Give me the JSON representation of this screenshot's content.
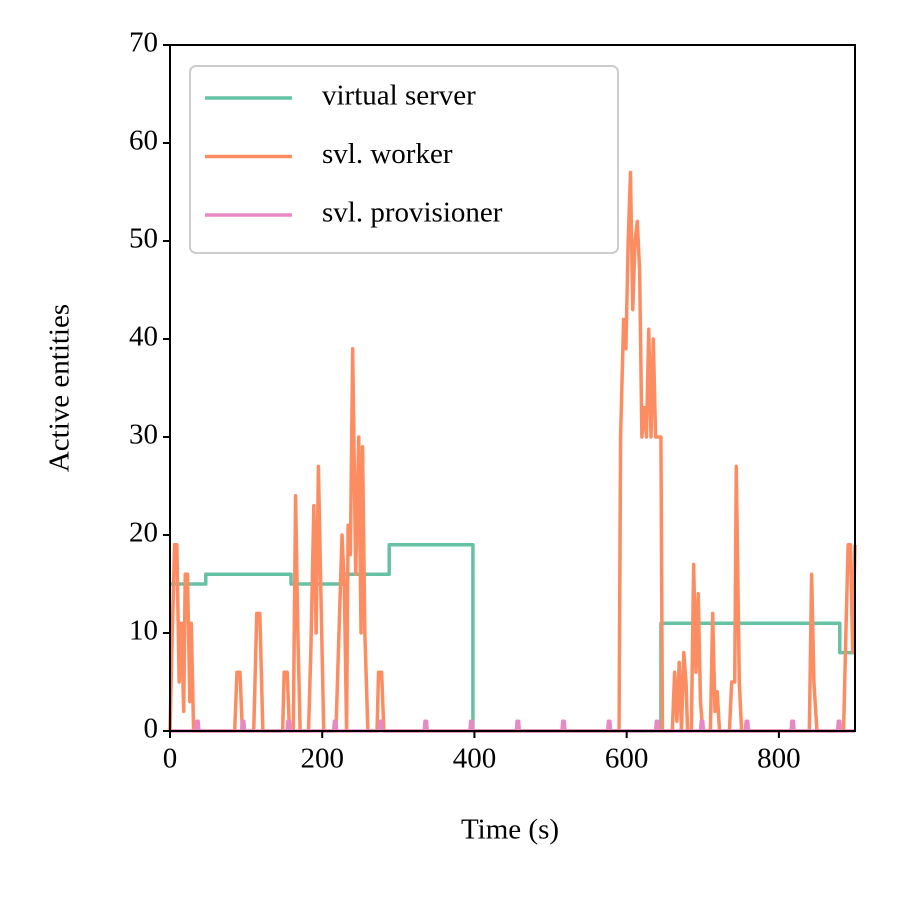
{
  "chart_data": {
    "type": "line",
    "xlabel": "Time (s)",
    "ylabel": "Active entities",
    "xlim": [
      0,
      900
    ],
    "xticks": [
      0,
      200,
      400,
      600,
      800
    ],
    "ylim": [
      0,
      70
    ],
    "yticks": [
      0,
      10,
      20,
      30,
      40,
      50,
      60,
      70
    ],
    "legend": "upper left",
    "series": [
      {
        "name": "virtual server",
        "color": "#66c2a5",
        "x": [
          0,
          47,
          47,
          159,
          159,
          227,
          227,
          288,
          288,
          398,
          398,
          645,
          645,
          880,
          880,
          900
        ],
        "values": [
          15,
          15,
          16,
          16,
          15,
          15,
          16,
          16,
          19,
          19,
          0,
          0,
          11,
          11,
          8,
          8
        ]
      },
      {
        "name": "svl. worker",
        "color": "#fc8d62",
        "x": [
          0,
          3,
          6,
          9,
          12,
          15,
          18,
          20,
          23,
          26,
          28,
          31,
          85,
          88,
          92,
          95,
          110,
          114,
          118,
          122,
          148,
          150,
          154,
          157,
          162,
          165,
          168,
          171,
          182,
          185,
          189,
          192,
          195,
          198,
          202,
          218,
          222,
          226,
          229,
          232,
          234,
          237,
          240,
          244,
          248,
          251,
          253,
          256,
          260,
          272,
          274,
          278,
          281,
          590,
          592,
          596,
          599,
          602,
          605,
          608,
          611,
          614,
          617,
          620,
          623,
          626,
          629,
          632,
          635,
          638,
          640,
          645,
          647,
          660,
          663,
          666,
          669,
          672,
          675,
          678,
          680,
          685,
          688,
          691,
          694,
          697,
          700,
          710,
          713,
          716,
          719,
          722,
          735,
          738,
          742,
          744,
          748,
          751,
          840,
          843,
          846,
          850,
          885,
          888,
          891,
          894,
          897,
          900
        ],
        "values": [
          0,
          10,
          19,
          19,
          5,
          11,
          2,
          16,
          16,
          3,
          11,
          0,
          0,
          6,
          6,
          0,
          0,
          12,
          12,
          0,
          0,
          6,
          6,
          0,
          0,
          24,
          10,
          0,
          0,
          8,
          23,
          10,
          27,
          15,
          0,
          0,
          10,
          20,
          15,
          0,
          21,
          18,
          39,
          16,
          30,
          10,
          29,
          10,
          0,
          0,
          6,
          6,
          0,
          0,
          30,
          42,
          39,
          50,
          57,
          43,
          50,
          52,
          47,
          30,
          33,
          30,
          41,
          30,
          40,
          30,
          30,
          30,
          0,
          0,
          6,
          1,
          7,
          0,
          8,
          5,
          0,
          0,
          17,
          6,
          14,
          3,
          0,
          0,
          12,
          2,
          4,
          0,
          0,
          5,
          5,
          27,
          5,
          0,
          0,
          16,
          5,
          0,
          0,
          10,
          19,
          19,
          8,
          19
        ]
      },
      {
        "name": "svl. provisioner",
        "color": "#e78ac3",
        "x": [
          0,
          34,
          35,
          37,
          38,
          94,
          95,
          97,
          98,
          154,
          155,
          157,
          158,
          215,
          216,
          218,
          219,
          275,
          276,
          278,
          279,
          334,
          335,
          337,
          338,
          394,
          395,
          397,
          398,
          455,
          456,
          458,
          459,
          515,
          516,
          518,
          519,
          575,
          576,
          578,
          579,
          638,
          639,
          641,
          642,
          697,
          698,
          700,
          701,
          756,
          757,
          759,
          760,
          816,
          817,
          819,
          820,
          877,
          878,
          880,
          881,
          900
        ],
        "values": [
          0,
          0,
          1,
          1,
          0,
          0,
          1,
          1,
          0,
          0,
          1,
          1,
          0,
          0,
          1,
          1,
          0,
          0,
          1,
          1,
          0,
          0,
          1,
          1,
          0,
          0,
          1,
          1,
          0,
          0,
          1,
          1,
          0,
          0,
          1,
          1,
          0,
          0,
          1,
          1,
          0,
          0,
          1,
          1,
          0,
          0,
          1,
          1,
          0,
          0,
          1,
          1,
          0,
          0,
          1,
          1,
          0,
          0,
          1,
          1,
          0,
          0
        ]
      }
    ]
  }
}
